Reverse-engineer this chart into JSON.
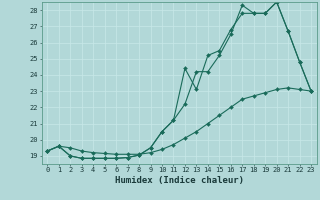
{
  "xlabel": "Humidex (Indice chaleur)",
  "xlim": [
    -0.5,
    23.5
  ],
  "ylim": [
    18.5,
    28.5
  ],
  "yticks": [
    19,
    20,
    21,
    22,
    23,
    24,
    25,
    26,
    27,
    28
  ],
  "xticks": [
    0,
    1,
    2,
    3,
    4,
    5,
    6,
    7,
    8,
    9,
    10,
    11,
    12,
    13,
    14,
    15,
    16,
    17,
    18,
    19,
    20,
    21,
    22,
    23
  ],
  "bg_color": "#b2d8d8",
  "grid_color": "#c8e8e8",
  "line_color": "#1a6b5a",
  "line1_x": [
    0,
    1,
    2,
    3,
    4,
    5,
    6,
    7,
    8,
    9,
    10,
    11,
    12,
    13,
    14,
    15,
    16,
    17,
    18,
    19,
    20,
    21,
    22,
    23
  ],
  "line1_y": [
    19.3,
    19.6,
    19.0,
    18.85,
    18.85,
    18.85,
    18.85,
    18.9,
    19.05,
    19.5,
    20.5,
    21.2,
    22.2,
    24.2,
    24.2,
    25.2,
    26.5,
    28.3,
    27.8,
    27.8,
    28.5,
    26.7,
    24.8,
    23.0
  ],
  "line2_x": [
    0,
    1,
    2,
    3,
    4,
    5,
    6,
    7,
    8,
    9,
    10,
    11,
    12,
    13,
    14,
    15,
    16,
    17,
    18,
    19,
    20,
    21,
    22,
    23
  ],
  "line2_y": [
    19.3,
    19.6,
    19.0,
    18.85,
    18.85,
    18.85,
    18.85,
    18.9,
    19.05,
    19.5,
    20.5,
    21.2,
    24.4,
    23.1,
    25.2,
    25.5,
    26.8,
    27.8,
    27.8,
    27.8,
    28.5,
    26.7,
    24.8,
    23.0
  ],
  "line3_x": [
    0,
    1,
    2,
    3,
    4,
    5,
    6,
    7,
    8,
    9,
    10,
    11,
    12,
    13,
    14,
    15,
    16,
    17,
    18,
    19,
    20,
    21,
    22,
    23
  ],
  "line3_y": [
    19.3,
    19.6,
    19.5,
    19.3,
    19.2,
    19.15,
    19.1,
    19.1,
    19.1,
    19.2,
    19.4,
    19.7,
    20.1,
    20.5,
    21.0,
    21.5,
    22.0,
    22.5,
    22.7,
    22.9,
    23.1,
    23.2,
    23.1,
    23.0
  ],
  "marker": "D",
  "markersize": 2.0,
  "linewidth": 0.8,
  "tick_fontsize": 5.0,
  "xlabel_fontsize": 6.5
}
